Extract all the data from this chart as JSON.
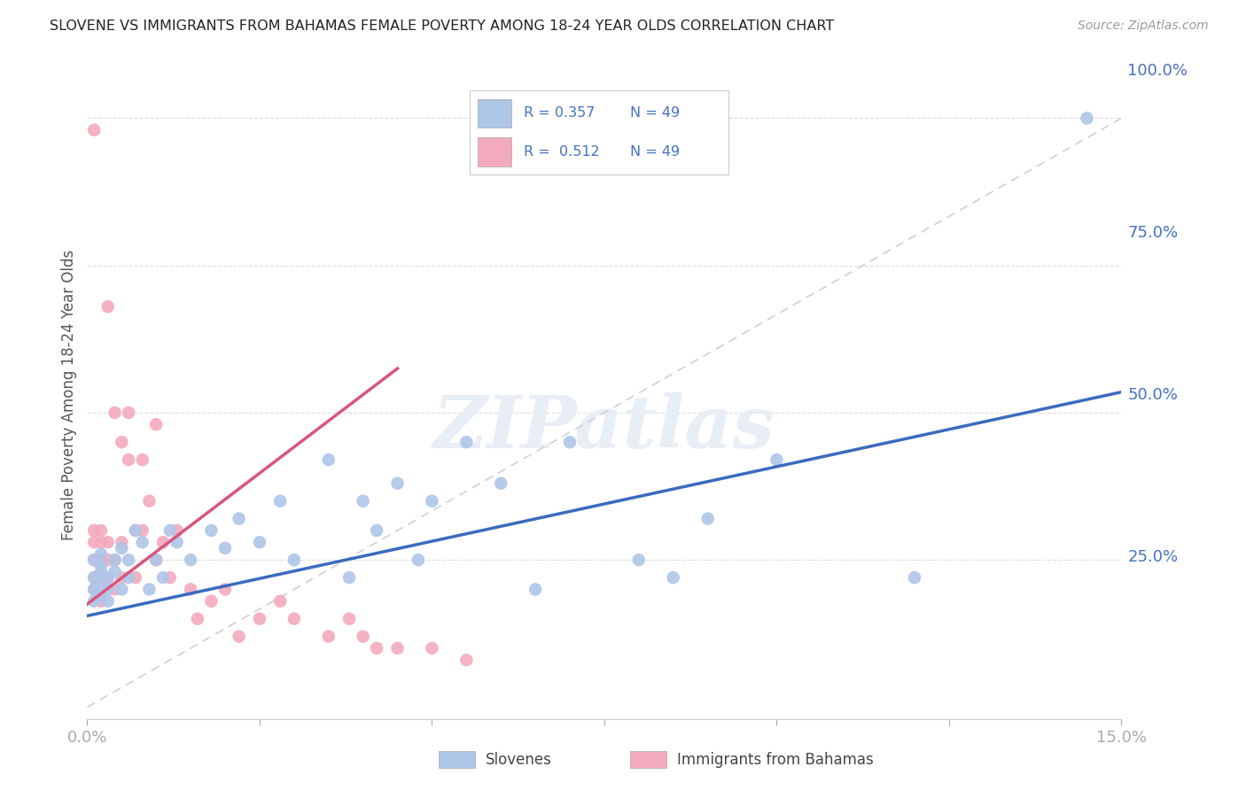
{
  "title": "SLOVENE VS IMMIGRANTS FROM BAHAMAS FEMALE POVERTY AMONG 18-24 YEAR OLDS CORRELATION CHART",
  "source": "Source: ZipAtlas.com",
  "ylabel": "Female Poverty Among 18-24 Year Olds",
  "xlim": [
    0.0,
    0.15
  ],
  "ylim": [
    -0.02,
    1.08
  ],
  "R_slovene": 0.357,
  "N_slovene": 49,
  "R_bahamas": 0.512,
  "N_bahamas": 49,
  "color_slovene": "#aec6e8",
  "color_bahamas": "#f4aabd",
  "color_line_slovene": "#3a6bbf",
  "color_line_bahamas": "#d9567a",
  "color_text_blue": "#4472c4",
  "color_axis": "#aaaaaa",
  "watermark_text": "ZIPatlas",
  "slovene_x": [
    0.001,
    0.001,
    0.001,
    0.001,
    0.002,
    0.002,
    0.002,
    0.002,
    0.002,
    0.003,
    0.003,
    0.003,
    0.004,
    0.004,
    0.005,
    0.005,
    0.006,
    0.006,
    0.007,
    0.008,
    0.009,
    0.01,
    0.011,
    0.012,
    0.013,
    0.015,
    0.018,
    0.02,
    0.022,
    0.025,
    0.028,
    0.03,
    0.035,
    0.038,
    0.04,
    0.042,
    0.045,
    0.048,
    0.05,
    0.055,
    0.06,
    0.065,
    0.07,
    0.08,
    0.085,
    0.09,
    0.1,
    0.12,
    0.145
  ],
  "slovene_y": [
    0.22,
    0.25,
    0.2,
    0.18,
    0.24,
    0.21,
    0.19,
    0.23,
    0.26,
    0.2,
    0.22,
    0.18,
    0.25,
    0.23,
    0.2,
    0.27,
    0.22,
    0.25,
    0.3,
    0.28,
    0.2,
    0.25,
    0.22,
    0.3,
    0.28,
    0.25,
    0.3,
    0.27,
    0.32,
    0.28,
    0.35,
    0.25,
    0.42,
    0.22,
    0.35,
    0.3,
    0.38,
    0.25,
    0.35,
    0.45,
    0.38,
    0.2,
    0.45,
    0.25,
    0.22,
    0.32,
    0.42,
    0.22,
    1.0
  ],
  "bahamas_x": [
    0.001,
    0.001,
    0.001,
    0.001,
    0.001,
    0.001,
    0.001,
    0.002,
    0.002,
    0.002,
    0.002,
    0.002,
    0.003,
    0.003,
    0.003,
    0.003,
    0.004,
    0.004,
    0.004,
    0.005,
    0.005,
    0.005,
    0.006,
    0.006,
    0.007,
    0.007,
    0.008,
    0.008,
    0.009,
    0.01,
    0.01,
    0.011,
    0.012,
    0.013,
    0.015,
    0.016,
    0.018,
    0.02,
    0.022,
    0.025,
    0.028,
    0.03,
    0.035,
    0.038,
    0.04,
    0.042,
    0.045,
    0.05,
    0.055
  ],
  "bahamas_y": [
    0.25,
    0.22,
    0.28,
    0.2,
    0.3,
    0.25,
    0.98,
    0.22,
    0.25,
    0.3,
    0.28,
    0.18,
    0.22,
    0.25,
    0.68,
    0.28,
    0.2,
    0.25,
    0.5,
    0.22,
    0.45,
    0.28,
    0.42,
    0.5,
    0.3,
    0.22,
    0.42,
    0.3,
    0.35,
    0.25,
    0.48,
    0.28,
    0.22,
    0.3,
    0.2,
    0.15,
    0.18,
    0.2,
    0.12,
    0.15,
    0.18,
    0.15,
    0.12,
    0.15,
    0.12,
    0.1,
    0.1,
    0.1,
    0.08
  ],
  "blue_line_x": [
    0.0,
    0.15
  ],
  "blue_line_y": [
    0.155,
    0.535
  ],
  "pink_line_x": [
    0.0,
    0.045
  ],
  "pink_line_y": [
    0.175,
    0.575
  ]
}
